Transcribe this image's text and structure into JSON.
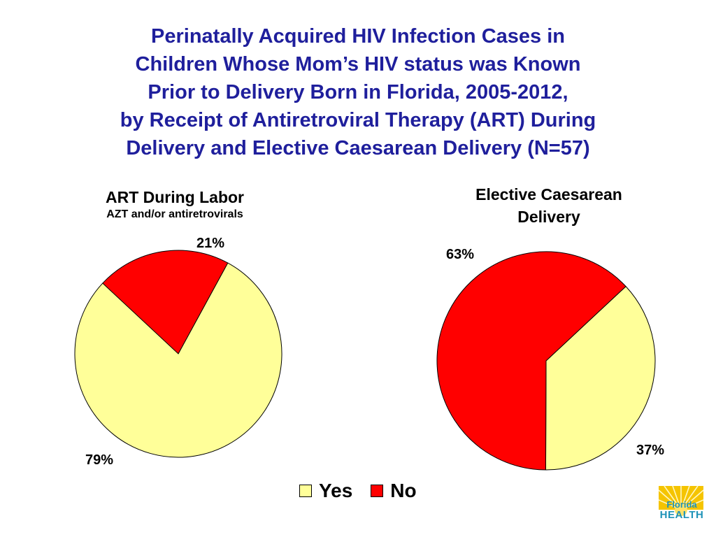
{
  "title_lines": [
    "Perinatally Acquired HIV Infection Cases in",
    "Children Whose Mom’s HIV status was Known",
    "Prior to Delivery Born in Florida, 2005-2012,",
    "by Receipt of Antiretroviral Therapy (ART) During",
    "Delivery and Elective Caesarean Delivery (N=57)"
  ],
  "chart_data": [
    {
      "type": "pie",
      "title": "ART During Labor",
      "subtitle": "AZT and/or antiretrovirals",
      "slices": [
        {
          "label": "Yes",
          "value": 79,
          "display": "79%",
          "color": "#ffff99"
        },
        {
          "label": "No",
          "value": 21,
          "display": "21%",
          "color": "#ff0000"
        }
      ]
    },
    {
      "type": "pie",
      "title": "Elective Caesarean Delivery",
      "title_lines": [
        "Elective Caesarean",
        "Delivery"
      ],
      "slices": [
        {
          "label": "Yes",
          "value": 37,
          "display": "37%",
          "color": "#ffff99"
        },
        {
          "label": "No",
          "value": 63,
          "display": "63%",
          "color": "#ff0000"
        }
      ]
    }
  ],
  "legend": {
    "placement": "bottom-center",
    "items": [
      {
        "label": "Yes",
        "color": "#ffff99"
      },
      {
        "label": "No",
        "color": "#ff0000"
      }
    ]
  },
  "logo": {
    "line1": "Florida",
    "line2": "HEALTH",
    "colors": {
      "sun": "#f5c400",
      "text": "#1f93b8"
    }
  }
}
